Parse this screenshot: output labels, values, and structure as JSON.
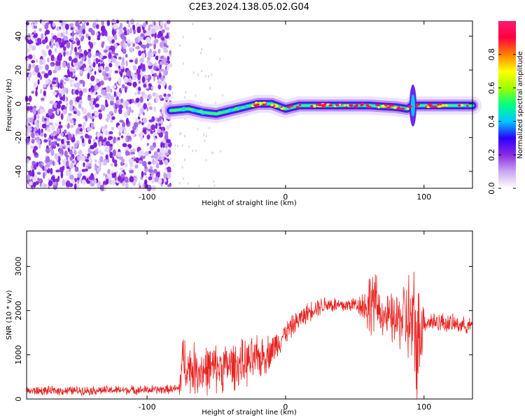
{
  "title": "C2E3.2024.138.05.02.G04",
  "chart_data": [
    {
      "type": "heatmap",
      "xlabel": "Height of straight line (km)",
      "ylabel": "Frequency (Hz)",
      "xlim": [
        -187,
        135
      ],
      "ylim": [
        -50,
        49
      ],
      "xticks": [
        -100,
        0,
        100
      ],
      "yticks": [
        -40,
        -20,
        0,
        20,
        40
      ],
      "colorbar": {
        "label": "Normalized spectral amplitude",
        "range": [
          0,
          1
        ],
        "ticks": [
          "0.0",
          "0.2",
          "0.4",
          "0.6",
          "0.8"
        ],
        "colormap": [
          "#ffffff",
          "#c9a8f0",
          "#8a2be2",
          "#2a00ff",
          "#00c8ff",
          "#00ff80",
          "#a0ff00",
          "#ffff00",
          "#ff8000",
          "#ff0040",
          "#ff1a6e"
        ]
      },
      "noise_region_x": [
        -187,
        -83
      ],
      "ridge": {
        "x": [
          -83,
          -70,
          -60,
          -50,
          -40,
          -30,
          -20,
          -10,
          0,
          10,
          20,
          40,
          60,
          80,
          88,
          92,
          100,
          120,
          135
        ],
        "freq": [
          -4,
          -3,
          -5,
          -6,
          -4,
          -2,
          0,
          0,
          -3,
          -1,
          -1,
          -1,
          -1,
          -2,
          -3,
          -1,
          -1,
          -1,
          -1
        ]
      }
    },
    {
      "type": "line",
      "xlabel": "Height of straight line (km)",
      "ylabel": "SNR (10 * v/v)",
      "xlim": [
        -187,
        135
      ],
      "ylim": [
        0,
        3800
      ],
      "xticks": [
        -100,
        0,
        100
      ],
      "yticks": [
        0,
        1000,
        2000,
        3000
      ],
      "color": "#e8221f",
      "envelope": {
        "x": [
          -187,
          -150,
          -120,
          -90,
          -77,
          -74,
          -70,
          -60,
          -50,
          -40,
          -30,
          -20,
          -10,
          0,
          10,
          20,
          30,
          40,
          50,
          60,
          62,
          70,
          80,
          86,
          90,
          94,
          96,
          98,
          100,
          110,
          120,
          135
        ],
        "value": [
          180,
          190,
          200,
          210,
          230,
          900,
          700,
          650,
          700,
          750,
          800,
          900,
          1100,
          1500,
          1800,
          2050,
          2150,
          2100,
          2150,
          2100,
          2300,
          1900,
          1750,
          1900,
          1700,
          1400,
          1200,
          1800,
          1750,
          1750,
          1700,
          1650
        ]
      },
      "spread": {
        "x": [
          -187,
          -77,
          -76,
          -20,
          0,
          50,
          55,
          62,
          70,
          85,
          90,
          94,
          96,
          98,
          100,
          135
        ],
        "value": [
          120,
          120,
          700,
          600,
          300,
          200,
          350,
          1000,
          500,
          900,
          1500,
          1900,
          1600,
          1400,
          300,
          200
        ]
      }
    }
  ]
}
